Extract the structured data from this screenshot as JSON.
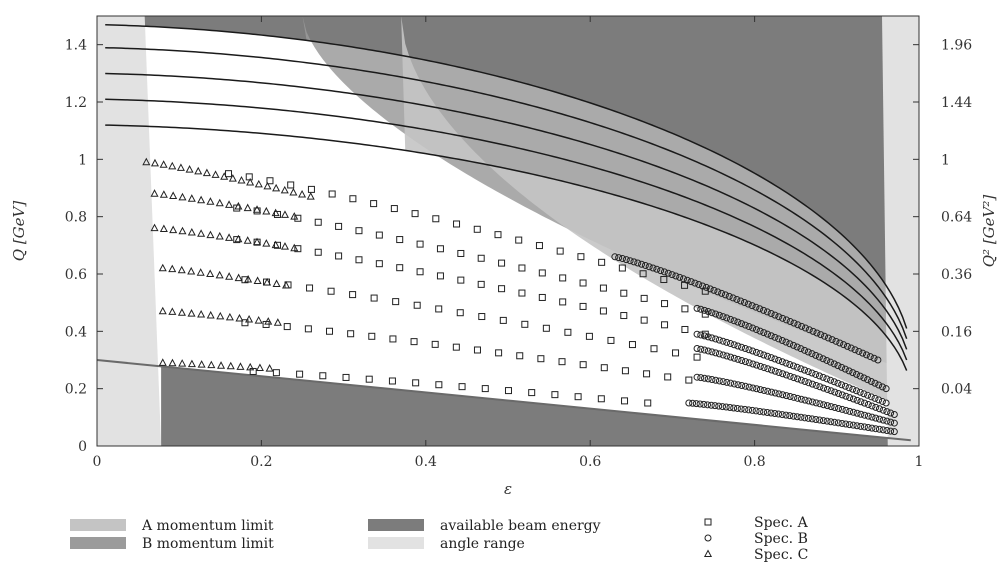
{
  "chart_data": {
    "type": "scatter",
    "xlabel": "ε",
    "ylabel": "Q [GeV]",
    "ylabel_right": "Q² [GeV²]",
    "xlim": [
      0,
      1
    ],
    "ylim": [
      0,
      1.5
    ],
    "x_ticks": [
      0,
      0.2,
      0.4,
      0.6,
      0.8,
      1
    ],
    "x_tick_labels": [
      "0",
      "0.2",
      "0.4",
      "0.6",
      "0.8",
      "1"
    ],
    "y_ticks": [
      0,
      0.2,
      0.4,
      0.6,
      0.8,
      1,
      1.2,
      1.4
    ],
    "y_tick_labels": [
      "0",
      "0.2",
      "0.4",
      "0.6",
      "0.8",
      "1",
      "1.2",
      "1.4"
    ],
    "y2_ticks": [
      0.04,
      0.16,
      0.36,
      0.64,
      1,
      1.44,
      1.96
    ],
    "y2_tick_labels": [
      "0.04",
      "0.16",
      "0.36",
      "0.64",
      "1",
      "1.44",
      "1.96"
    ],
    "legend": [
      {
        "label": "A momentum limit",
        "kind": "swatch",
        "color": "#c4c4c4"
      },
      {
        "label": "B momentum limit",
        "kind": "swatch",
        "color": "#9b9b9b"
      },
      {
        "label": "available beam energy",
        "kind": "swatch",
        "color": "#7c7c7c"
      },
      {
        "label": "angle range",
        "kind": "swatch",
        "color": "#e2e2e2"
      },
      {
        "label": "Spec. A",
        "kind": "marker",
        "marker": "square"
      },
      {
        "label": "Spec. B",
        "kind": "marker",
        "marker": "circle"
      },
      {
        "label": "Spec. C",
        "kind": "marker",
        "marker": "triangle"
      }
    ],
    "colors": {
      "angle_range": "#e2e2e2",
      "beam_energy": "#7c7c7c",
      "a_limit": "#c4c4c4",
      "b_limit": "#9b9b9b",
      "curve": "#1a1a1a",
      "marker_stroke": "#222222"
    },
    "regions": {
      "angle_range_left_x_at_top": 0.058,
      "angle_range_left_x_at_bottom": 0.078,
      "angle_range_right_x_at_top": 0.955,
      "angle_range_right_x_at_bottom": 0.962,
      "beam_energy_upper_x_at_top": 0.058,
      "beam_energy_lower_start_x": 0.078,
      "a_limit_x_at_top": 0.37,
      "b_limit_x_at_top": 0.25
    },
    "beam_curves_Q_at_eps0": [
      1.47,
      1.39,
      1.3,
      1.21,
      1.12
    ],
    "beam_curves_end_x": 0.99,
    "beam_curves_end_Q": [
      0.27,
      0.24,
      0.21,
      0.18,
      0.15
    ],
    "lower_boundary_curve": {
      "x0": 0.0,
      "y0": 0.3,
      "x1": 0.99,
      "y1": 0.02
    },
    "series": [
      {
        "name": "Spec. C",
        "marker": "triangle",
        "rows": [
          {
            "x_range": [
              0.06,
              0.26
            ],
            "y_start": 0.99,
            "y_end": 0.87,
            "n": 20
          },
          {
            "x_range": [
              0.07,
              0.24
            ],
            "y_start": 0.88,
            "y_end": 0.8,
            "n": 16
          },
          {
            "x_range": [
              0.07,
              0.24
            ],
            "y_start": 0.76,
            "y_end": 0.69,
            "n": 16
          },
          {
            "x_range": [
              0.08,
              0.23
            ],
            "y_start": 0.62,
            "y_end": 0.56,
            "n": 14
          },
          {
            "x_range": [
              0.08,
              0.22
            ],
            "y_start": 0.47,
            "y_end": 0.43,
            "n": 13
          },
          {
            "x_range": [
              0.08,
              0.21
            ],
            "y_start": 0.29,
            "y_end": 0.27,
            "n": 12
          }
        ]
      },
      {
        "name": "Spec. A",
        "marker": "square",
        "rows": [
          {
            "x_range": [
              0.16,
              0.74
            ],
            "y_start": 0.95,
            "y_end": 0.54,
            "n": 24
          },
          {
            "x_range": [
              0.17,
              0.74
            ],
            "y_start": 0.83,
            "y_end": 0.46,
            "n": 24
          },
          {
            "x_range": [
              0.17,
              0.74
            ],
            "y_start": 0.72,
            "y_end": 0.39,
            "n": 24
          },
          {
            "x_range": [
              0.18,
              0.73
            ],
            "y_start": 0.58,
            "y_end": 0.31,
            "n": 22
          },
          {
            "x_range": [
              0.18,
              0.72
            ],
            "y_start": 0.43,
            "y_end": 0.23,
            "n": 22
          },
          {
            "x_range": [
              0.19,
              0.67
            ],
            "y_start": 0.26,
            "y_end": 0.15,
            "n": 18
          }
        ]
      },
      {
        "name": "Spec. B",
        "marker": "circle",
        "rows": [
          {
            "x_range": [
              0.63,
              0.95
            ],
            "y_start": 0.66,
            "y_end": 0.3,
            "n": 70
          },
          {
            "x_range": [
              0.73,
              0.96
            ],
            "y_start": 0.48,
            "y_end": 0.2,
            "n": 52
          },
          {
            "x_range": [
              0.73,
              0.96
            ],
            "y_start": 0.39,
            "y_end": 0.15,
            "n": 52
          },
          {
            "x_range": [
              0.73,
              0.97
            ],
            "y_start": 0.34,
            "y_end": 0.11,
            "n": 54
          },
          {
            "x_range": [
              0.73,
              0.97
            ],
            "y_start": 0.24,
            "y_end": 0.08,
            "n": 54
          },
          {
            "x_range": [
              0.72,
              0.97
            ],
            "y_start": 0.15,
            "y_end": 0.05,
            "n": 56
          }
        ]
      }
    ]
  }
}
